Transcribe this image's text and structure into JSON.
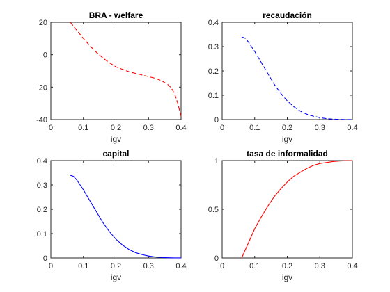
{
  "figure": {
    "background": "#ffffff",
    "axis_color": "#262626"
  },
  "chart_data": [
    {
      "type": "line",
      "title": "BRA - welfare",
      "xlabel": "igv",
      "ylabel": "",
      "xlim": [
        0,
        0.4
      ],
      "ylim": [
        -40,
        20
      ],
      "xticks": [
        0,
        0.1,
        0.2,
        0.3,
        0.4
      ],
      "xtick_labels": [
        "0",
        "0.1",
        "0.2",
        "0.3",
        "0.4"
      ],
      "yticks": [
        -40,
        -20,
        0,
        20
      ],
      "ytick_labels": [
        "-40",
        "-20",
        "0",
        "20"
      ],
      "grid": false,
      "series": [
        {
          "color": "#ff0000",
          "style": "dashed",
          "x": [
            0.06,
            0.08,
            0.1,
            0.12,
            0.14,
            0.16,
            0.18,
            0.2,
            0.22,
            0.24,
            0.26,
            0.28,
            0.3,
            0.32,
            0.34,
            0.36,
            0.37,
            0.38,
            0.39,
            0.4
          ],
          "y": [
            20,
            15,
            10,
            5.5,
            1.5,
            -2,
            -5,
            -7.5,
            -9,
            -10.5,
            -11.5,
            -12.5,
            -13.5,
            -14.5,
            -16,
            -18.5,
            -20.5,
            -24,
            -30,
            -38
          ]
        }
      ]
    },
    {
      "type": "line",
      "title": "recaudación",
      "xlabel": "igv",
      "ylabel": "",
      "xlim": [
        0,
        0.4
      ],
      "ylim": [
        0,
        0.4
      ],
      "xticks": [
        0,
        0.1,
        0.2,
        0.3,
        0.4
      ],
      "xtick_labels": [
        "0",
        "0.1",
        "0.2",
        "0.3",
        "0.4"
      ],
      "yticks": [
        0,
        0.1,
        0.2,
        0.3,
        0.4
      ],
      "ytick_labels": [
        "0",
        "0.1",
        "0.2",
        "0.3",
        "0.4"
      ],
      "grid": false,
      "series": [
        {
          "color": "#0000ff",
          "style": "dashed",
          "x": [
            0.06,
            0.07,
            0.08,
            0.09,
            0.1,
            0.12,
            0.14,
            0.16,
            0.18,
            0.2,
            0.22,
            0.24,
            0.26,
            0.28,
            0.3,
            0.32,
            0.34,
            0.36,
            0.38,
            0.4
          ],
          "y": [
            0.34,
            0.335,
            0.32,
            0.3,
            0.28,
            0.235,
            0.19,
            0.145,
            0.108,
            0.077,
            0.053,
            0.035,
            0.022,
            0.014,
            0.008,
            0.004,
            0.002,
            0.001,
            0.0003,
            0.0001
          ]
        }
      ]
    },
    {
      "type": "line",
      "title": "capital",
      "xlabel": "igv",
      "ylabel": "",
      "xlim": [
        0,
        0.4
      ],
      "ylim": [
        0,
        0.4
      ],
      "xticks": [
        0,
        0.1,
        0.2,
        0.3,
        0.4
      ],
      "xtick_labels": [
        "0",
        "0.1",
        "0.2",
        "0.3",
        "0.4"
      ],
      "yticks": [
        0,
        0.1,
        0.2,
        0.3,
        0.4
      ],
      "ytick_labels": [
        "0",
        "0.1",
        "0.2",
        "0.3",
        "0.4"
      ],
      "grid": false,
      "series": [
        {
          "color": "#0000ff",
          "style": "solid",
          "x": [
            0.06,
            0.07,
            0.08,
            0.09,
            0.1,
            0.12,
            0.14,
            0.16,
            0.18,
            0.2,
            0.22,
            0.24,
            0.26,
            0.28,
            0.3,
            0.32,
            0.34,
            0.36,
            0.38,
            0.4
          ],
          "y": [
            0.34,
            0.335,
            0.32,
            0.3,
            0.28,
            0.235,
            0.19,
            0.145,
            0.108,
            0.077,
            0.053,
            0.035,
            0.022,
            0.014,
            0.008,
            0.004,
            0.002,
            0.001,
            0.0003,
            0.0001
          ]
        }
      ]
    },
    {
      "type": "line",
      "title": "tasa de informalidad",
      "xlabel": "igv",
      "ylabel": "",
      "xlim": [
        0,
        0.4
      ],
      "ylim": [
        0,
        1
      ],
      "xticks": [
        0,
        0.1,
        0.2,
        0.3,
        0.4
      ],
      "xtick_labels": [
        "0",
        "0.1",
        "0.2",
        "0.3",
        "0.4"
      ],
      "yticks": [
        0,
        0.5,
        1
      ],
      "ytick_labels": [
        "0",
        "0.5",
        "1"
      ],
      "grid": false,
      "series": [
        {
          "color": "#ff0000",
          "style": "solid",
          "x": [
            0.06,
            0.08,
            0.1,
            0.12,
            0.14,
            0.16,
            0.18,
            0.2,
            0.22,
            0.24,
            0.26,
            0.28,
            0.3,
            0.32,
            0.34,
            0.36,
            0.38,
            0.4
          ],
          "y": [
            0.0,
            0.15,
            0.3,
            0.42,
            0.53,
            0.63,
            0.71,
            0.78,
            0.84,
            0.88,
            0.92,
            0.95,
            0.97,
            0.98,
            0.99,
            0.995,
            0.999,
            1.0
          ]
        }
      ]
    }
  ]
}
